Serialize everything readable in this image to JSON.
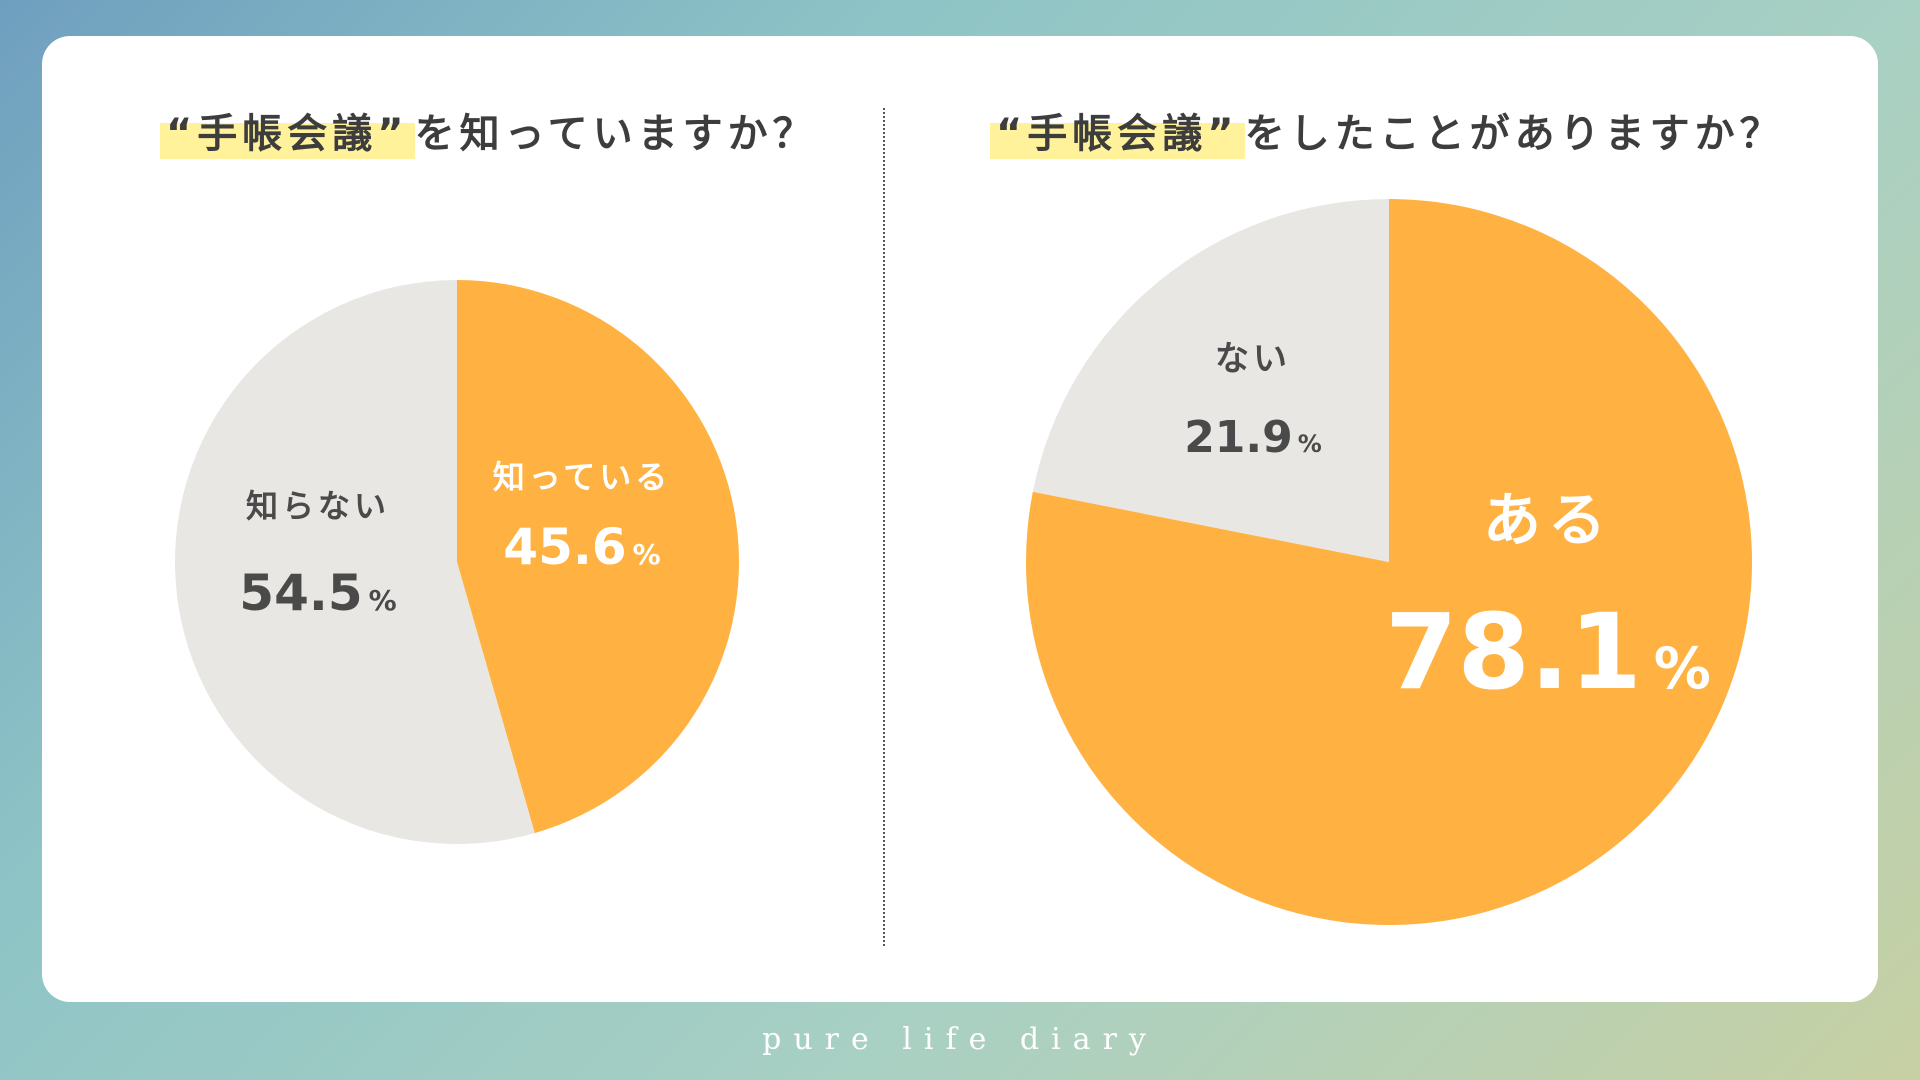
{
  "colors": {
    "accent": "#ffb142",
    "neutral": "#e8e7e3",
    "dark_text": "#4a4a4a",
    "light_text": "#ffffff",
    "highlight": "#fff29a"
  },
  "left": {
    "title_quoted": "“手帳会議”",
    "title_rest": "を知っていますか？"
  },
  "right": {
    "title_quoted": "“手帳会議”",
    "title_rest": "をしたことがありますか？"
  },
  "footer": "pure life diary",
  "chart_data": [
    {
      "type": "pie",
      "title": "“手帳会議”を知っていますか？",
      "series": [
        {
          "label": "知っている",
          "value": 45.6,
          "display": "45.6",
          "unit": "%",
          "color": "#ffb142",
          "text_color": "#ffffff"
        },
        {
          "label": "知らない",
          "value": 54.5,
          "display": "54.5",
          "unit": "%",
          "color": "#e8e7e3",
          "text_color": "#4a4a4a"
        }
      ]
    },
    {
      "type": "pie",
      "title": "“手帳会議”をしたことがありますか？",
      "series": [
        {
          "label": "ある",
          "value": 78.1,
          "display": "78.1",
          "unit": "%",
          "color": "#ffb142",
          "text_color": "#ffffff"
        },
        {
          "label": "ない",
          "value": 21.9,
          "display": "21.9",
          "unit": "%",
          "color": "#e8e7e3",
          "text_color": "#4a4a4a"
        }
      ]
    }
  ]
}
